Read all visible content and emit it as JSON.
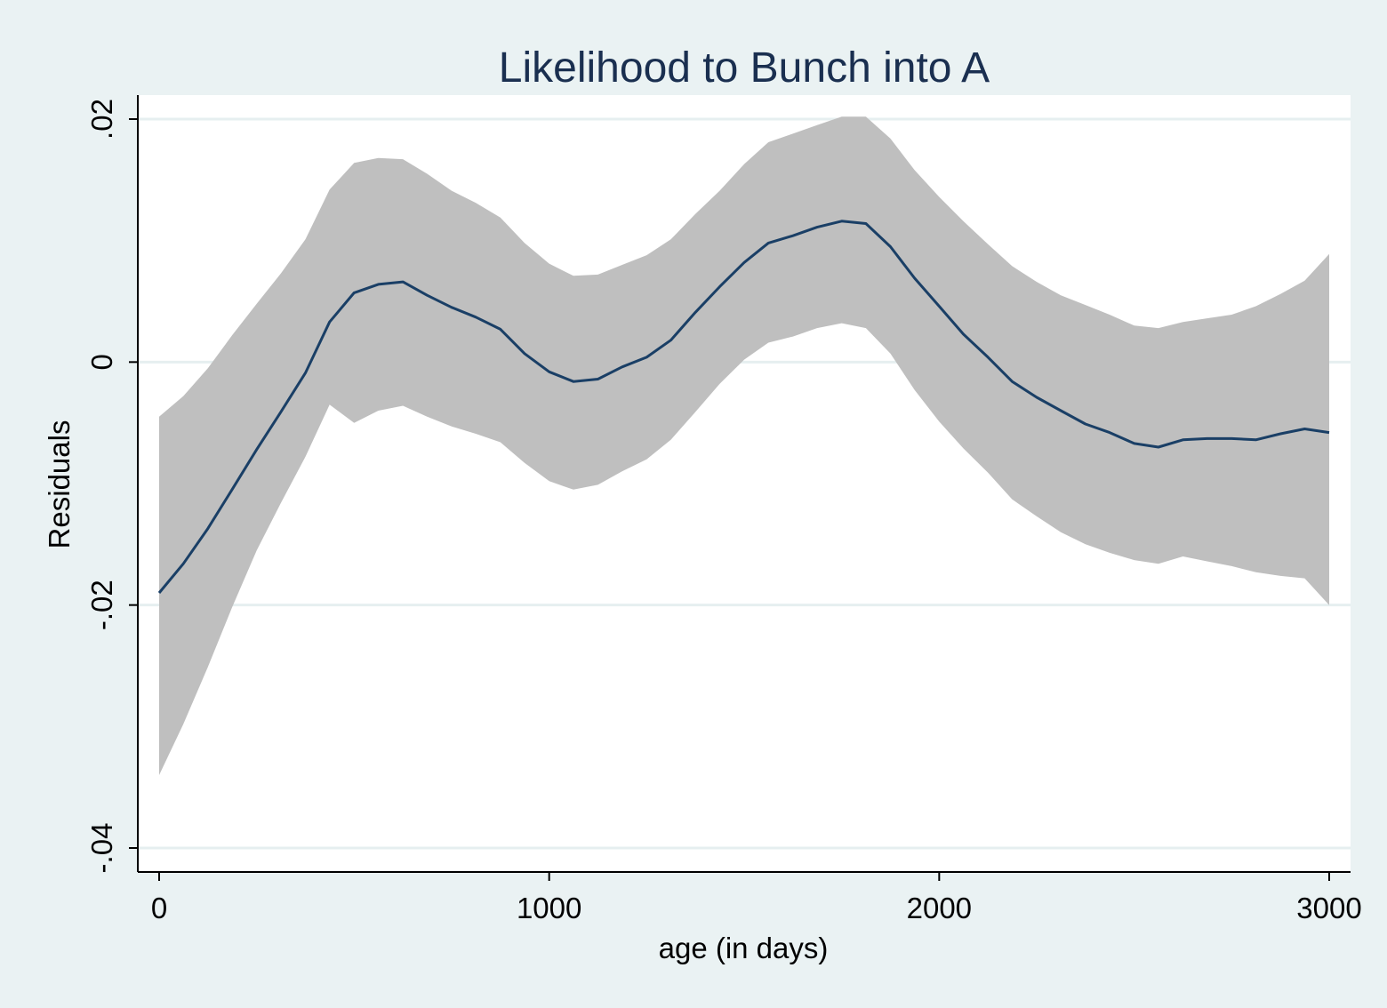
{
  "chart_data": {
    "type": "line",
    "title": "Likelihood to Bunch into A",
    "xlabel": "age (in days)",
    "ylabel": "Residuals",
    "xlim": [
      -50,
      3050
    ],
    "ylim": [
      -0.042,
      0.022
    ],
    "x_ticks": [
      {
        "value": 0,
        "label": "0"
      },
      {
        "value": 1000,
        "label": "1000"
      },
      {
        "value": 2000,
        "label": "2000"
      },
      {
        "value": 3000,
        "label": "3000"
      }
    ],
    "y_ticks": [
      {
        "value": -0.04,
        "label": "-.04"
      },
      {
        "value": -0.02,
        "label": "-.02"
      },
      {
        "value": 0,
        "label": "0"
      },
      {
        "value": 0.02,
        "label": ".02"
      }
    ],
    "grid": true,
    "x": [
      0,
      62,
      125,
      187,
      250,
      312,
      375,
      437,
      500,
      562,
      625,
      687,
      750,
      812,
      875,
      937,
      1000,
      1062,
      1125,
      1187,
      1250,
      1312,
      1375,
      1437,
      1500,
      1562,
      1625,
      1687,
      1750,
      1812,
      1875,
      1937,
      2000,
      2062,
      2125,
      2187,
      2250,
      2312,
      2375,
      2437,
      2500,
      2562,
      2625,
      2687,
      2750,
      2812,
      2875,
      2937,
      3000
    ],
    "series": [
      {
        "values": [
          -0.019,
          -0.0166,
          -0.0137,
          -0.0105,
          -0.0072,
          -0.0041,
          -0.0009,
          0.0033,
          0.0057,
          0.0064,
          0.0066,
          0.0055,
          0.0045,
          0.0037,
          0.0027,
          0.0007,
          -0.0008,
          -0.0016,
          -0.0014,
          -0.0004,
          0.0004,
          0.0018,
          0.0041,
          0.0062,
          0.0082,
          0.0098,
          0.0104,
          0.0111,
          0.0116,
          0.0114,
          0.0095,
          0.0069,
          0.0046,
          0.0023,
          0.0004,
          -0.0016,
          -0.0029,
          -0.004,
          -0.0051,
          -0.0058,
          -0.0067,
          -0.007,
          -0.0064,
          -0.0063,
          -0.0063,
          -0.0064,
          -0.0059,
          -0.0055,
          -0.0058
        ],
        "lower": [
          -0.034,
          -0.0298,
          -0.0251,
          -0.0202,
          -0.0155,
          -0.0116,
          -0.0078,
          -0.0035,
          -0.005,
          -0.004,
          -0.0036,
          -0.0045,
          -0.0053,
          -0.0059,
          -0.0066,
          -0.0083,
          -0.0098,
          -0.0105,
          -0.0101,
          -0.009,
          -0.008,
          -0.0064,
          -0.0041,
          -0.0018,
          0.0002,
          0.0016,
          0.0021,
          0.0028,
          0.0032,
          0.0028,
          0.0007,
          -0.0023,
          -0.0049,
          -0.0071,
          -0.0091,
          -0.0113,
          -0.0127,
          -0.014,
          -0.015,
          -0.0157,
          -0.0163,
          -0.0166,
          -0.016,
          -0.0164,
          -0.0168,
          -0.0173,
          -0.0176,
          -0.0178,
          -0.02
        ],
        "upper": [
          -0.0045,
          -0.0028,
          -0.0005,
          0.0022,
          0.0048,
          0.0073,
          0.0101,
          0.0142,
          0.0164,
          0.0168,
          0.0167,
          0.0155,
          0.0141,
          0.0131,
          0.0119,
          0.0098,
          0.0081,
          0.0071,
          0.0072,
          0.008,
          0.0088,
          0.0101,
          0.0122,
          0.0141,
          0.0163,
          0.0181,
          0.0188,
          0.0195,
          0.0202,
          0.0202,
          0.0184,
          0.0158,
          0.0136,
          0.0116,
          0.0097,
          0.0079,
          0.0066,
          0.0055,
          0.0047,
          0.0039,
          0.003,
          0.0028,
          0.0033,
          0.0036,
          0.0039,
          0.0046,
          0.0056,
          0.0067,
          0.0089
        ]
      }
    ],
    "colors": {
      "background": "#eaf2f3",
      "plot_background": "#ffffff",
      "gridline": "#e6eff0",
      "band": "#bfbfbf",
      "line": "#1a3f66",
      "title": "#1a2f50"
    }
  }
}
